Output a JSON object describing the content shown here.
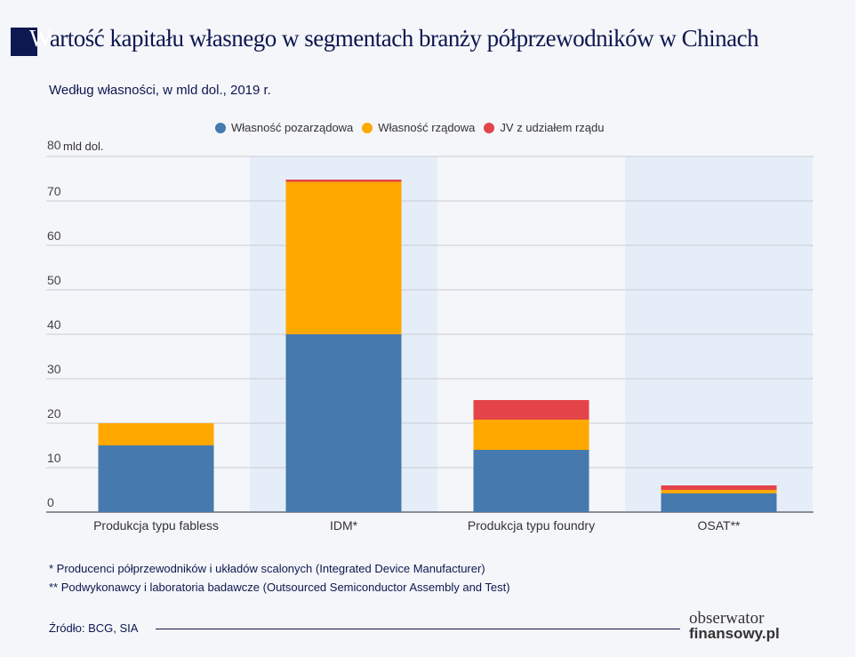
{
  "header": {
    "title_first_letter": "W",
    "title_rest": "artość kapitału własnego w segmentach branży półprzewodników w Chinach",
    "subtitle": "Według własności, w mld dol., 2019 r."
  },
  "chart_data": {
    "type": "bar",
    "stacked": true,
    "categories": [
      "Produkcja typu fabless",
      "IDM*",
      "Produkcja typu foundry",
      "OSAT**"
    ],
    "series": [
      {
        "name": "Własność pozarządowa",
        "color": "#4679ad",
        "values": [
          15,
          40,
          14,
          4.2
        ]
      },
      {
        "name": "Własność rządowa",
        "color": "#ffa800",
        "values": [
          5,
          34.3,
          6.8,
          0.8
        ]
      },
      {
        "name": "JV z udziałem rządu",
        "color": "#e4434a",
        "values": [
          0,
          0.5,
          4.4,
          1
        ]
      }
    ],
    "ylabel": "mld dol.",
    "ylim": [
      0,
      80
    ],
    "yticks": [
      0,
      10,
      20,
      30,
      40,
      50,
      60,
      70,
      80
    ],
    "grid": true,
    "legend": "top"
  },
  "footnotes": [
    "* Producenci półprzewodników i układów scalonych (Integrated Device Manufacturer)",
    "** Podwykonawcy i laboratoria badawcze (Outsourced Semiconductor Assembly and Test)"
  ],
  "source": "Źródło: BCG, SIA",
  "logo": {
    "line1": "obserwator",
    "line2": "finansowy.pl"
  }
}
